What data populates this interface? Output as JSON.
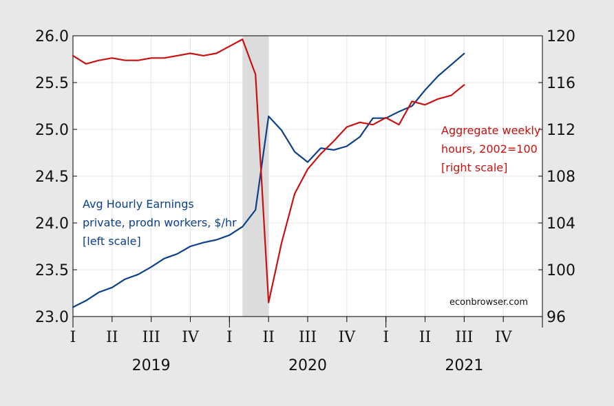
{
  "chart_data": {
    "type": "line",
    "title": "",
    "x_axis": {
      "range": [
        "2019-01",
        "2021-12"
      ],
      "quarter_labels": [
        "I",
        "II",
        "III",
        "IV",
        "I",
        "II",
        "III",
        "IV",
        "I",
        "II",
        "III",
        "IV"
      ],
      "year_labels": [
        "2019",
        "2020",
        "2021"
      ]
    },
    "y_left": {
      "range": [
        23.0,
        26.0
      ],
      "ticks": [
        "23.0",
        "23.5",
        "24.0",
        "24.5",
        "25.0",
        "25.5",
        "26.0"
      ]
    },
    "y_right": {
      "range": [
        96,
        120
      ],
      "ticks": [
        "96",
        "100",
        "104",
        "108",
        "112",
        "116",
        "120"
      ]
    },
    "recession_shading": {
      "start": "2020-02",
      "end": "2020-04",
      "color": "#dcdcdc"
    },
    "grid": true,
    "legend": "none",
    "series": [
      {
        "axis": "left",
        "color": "#0b3f86",
        "x": [
          "2019-01",
          "2019-02",
          "2019-03",
          "2019-04",
          "2019-05",
          "2019-06",
          "2019-07",
          "2019-08",
          "2019-09",
          "2019-10",
          "2019-11",
          "2019-12",
          "2020-01",
          "2020-02",
          "2020-03",
          "2020-04",
          "2020-05",
          "2020-06",
          "2020-07",
          "2020-08",
          "2020-09",
          "2020-10",
          "2020-11",
          "2020-12",
          "2021-01",
          "2021-02",
          "2021-03",
          "2021-04",
          "2021-05",
          "2021-06",
          "2021-07"
        ],
        "values": [
          23.1,
          23.17,
          23.26,
          23.31,
          23.4,
          23.45,
          23.53,
          23.62,
          23.67,
          23.75,
          23.79,
          23.82,
          23.87,
          23.96,
          24.14,
          25.14,
          24.99,
          24.76,
          24.65,
          24.8,
          24.78,
          24.82,
          24.92,
          25.12,
          25.12,
          25.19,
          25.25,
          25.42,
          25.57,
          25.69,
          25.81
        ]
      },
      {
        "axis": "right",
        "color": "#c81010",
        "x": [
          "2019-01",
          "2019-02",
          "2019-03",
          "2019-04",
          "2019-05",
          "2019-06",
          "2019-07",
          "2019-08",
          "2019-09",
          "2019-10",
          "2019-11",
          "2019-12",
          "2020-01",
          "2020-02",
          "2020-03",
          "2020-04",
          "2020-05",
          "2020-06",
          "2020-07",
          "2020-08",
          "2020-09",
          "2020-10",
          "2020-11",
          "2020-12",
          "2021-01",
          "2021-02",
          "2021-03",
          "2021-04",
          "2021-05",
          "2021-06",
          "2021-07"
        ],
        "values": [
          118.3,
          117.6,
          117.9,
          118.1,
          117.9,
          117.9,
          118.1,
          118.1,
          118.3,
          118.5,
          118.3,
          118.5,
          119.1,
          119.7,
          116.7,
          97.2,
          102.3,
          106.5,
          108.6,
          109.9,
          111.0,
          112.2,
          112.6,
          112.4,
          113.0,
          112.4,
          114.4,
          114.1,
          114.6,
          114.9,
          115.8
        ]
      }
    ],
    "annotations": {
      "blue_lines": [
        "Avg Hourly Earnings",
        "private, prodn workers, $/hr",
        "[left scale]"
      ],
      "red_lines": [
        "Aggregate weekly",
        "hours, 2002=100",
        "[right scale]"
      ],
      "credit": "econbrowser.com"
    }
  }
}
